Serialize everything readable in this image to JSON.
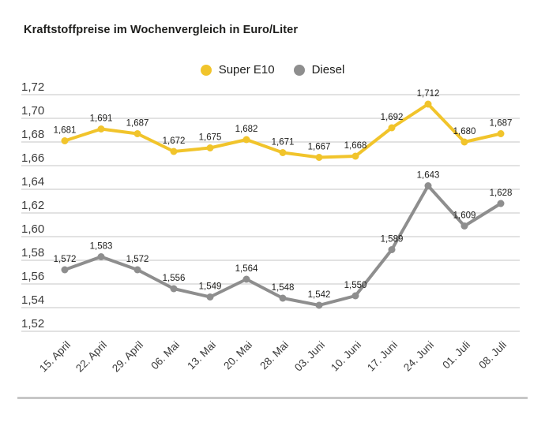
{
  "title": "Kraftstoffpreise im Wochenvergleich in Euro/Liter",
  "colors": {
    "super_e10": "#F1C42B",
    "diesel": "#8E8E8E",
    "grid": "#D8D8D8",
    "separator": "#C7C7C7",
    "title_text": "#1D1D1B",
    "axis_text": "#3B3B3B",
    "value_label_text": "#1D1D1B"
  },
  "legend": [
    {
      "label": "Super E10",
      "color": "#F1C42B"
    },
    {
      "label": "Diesel",
      "color": "#8E8E8E"
    }
  ],
  "chart_data": {
    "type": "line",
    "title": "Kraftstoffpreise im Wochenvergleich in Euro/Liter",
    "xlabel": "",
    "ylabel": "Euro/Liter",
    "grid": true,
    "legend_position": "top-center",
    "categories": [
      "15. April",
      "22. April",
      "29. April",
      "06. Mai",
      "13. Mai",
      "20. Mai",
      "28. Mai",
      "03. Juni",
      "10. Juni",
      "17. Juni",
      "24. Juni",
      "01. Juli",
      "08. Juli"
    ],
    "ylim": [
      1.52,
      1.72
    ],
    "ytick_step": 0.02,
    "yticks": [
      {
        "value": 1.72,
        "label": "1,72"
      },
      {
        "value": 1.7,
        "label": "1,70"
      },
      {
        "value": 1.68,
        "label": "1,68"
      },
      {
        "value": 1.66,
        "label": "1,66"
      },
      {
        "value": 1.64,
        "label": "1,64"
      },
      {
        "value": 1.62,
        "label": "1,62"
      },
      {
        "value": 1.6,
        "label": "1,60"
      },
      {
        "value": 1.58,
        "label": "1,58"
      },
      {
        "value": 1.56,
        "label": "1,56"
      },
      {
        "value": 1.54,
        "label": "1,54"
      },
      {
        "value": 1.52,
        "label": "1,52"
      }
    ],
    "series": [
      {
        "name": "Super E10",
        "color": "#F1C42B",
        "values": [
          1.681,
          1.691,
          1.687,
          1.672,
          1.675,
          1.682,
          1.671,
          1.667,
          1.668,
          1.692,
          1.712,
          1.68,
          1.687
        ],
        "labels": [
          "1,681",
          "1,691",
          "1,687",
          "1,672",
          "1,675",
          "1,682",
          "1,671",
          "1,667",
          "1,668",
          "1,692",
          "1,712",
          "1,680",
          "1,687"
        ]
      },
      {
        "name": "Diesel",
        "color": "#8E8E8E",
        "values": [
          1.572,
          1.583,
          1.572,
          1.556,
          1.549,
          1.564,
          1.548,
          1.542,
          1.55,
          1.589,
          1.643,
          1.609,
          1.628
        ],
        "labels": [
          "1,572",
          "1,583",
          "1,572",
          "1,556",
          "1,549",
          "1,564",
          "1,548",
          "1,542",
          "1,550",
          "1,589",
          "1,643",
          "1,609",
          "1,628"
        ]
      }
    ]
  }
}
